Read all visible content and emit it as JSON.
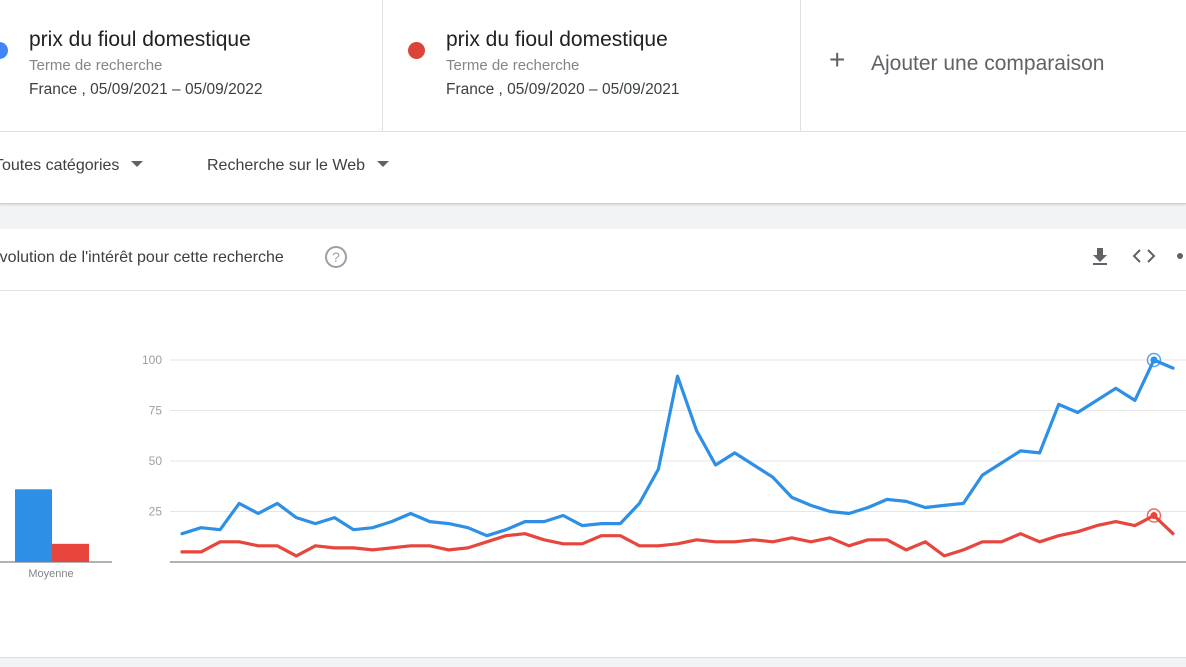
{
  "terms": [
    {
      "name": "prix du fioul domestique",
      "type": "Terme de recherche",
      "range": "France , 05/09/2021 – 05/09/2022",
      "color": "#4285f4"
    },
    {
      "name": "prix du fioul domestique",
      "type": "Terme de recherche",
      "range": "France , 05/09/2020 – 05/09/2021",
      "color": "#db4437"
    }
  ],
  "add_comparison": "Ajouter une comparaison",
  "filters": {
    "category": "Toutes catégories",
    "search_type": "Recherche sur le Web"
  },
  "card": {
    "title": "Évolution de l'intérêt pour cette recherche",
    "help": "?"
  },
  "toolbar": {
    "download": "download-icon",
    "embed": "embed-icon",
    "share": "share-icon"
  },
  "chart_data": {
    "type": "line",
    "ylim": [
      0,
      100
    ],
    "yticks": [
      25,
      50,
      75,
      100
    ],
    "average": {
      "label": "Moyenne",
      "values": [
        36,
        9
      ]
    },
    "series": [
      {
        "color": "#2d8fe6",
        "values": [
          14,
          17,
          16,
          29,
          24,
          29,
          22,
          19,
          22,
          16,
          17,
          20,
          24,
          20,
          19,
          17,
          13,
          16,
          20,
          20,
          23,
          18,
          19,
          19,
          29,
          46,
          92,
          65,
          48,
          54,
          48,
          42,
          32,
          28,
          25,
          24,
          27,
          31,
          30,
          27,
          28,
          29,
          43,
          49,
          55,
          54,
          78,
          74,
          80,
          86,
          80,
          100,
          96
        ]
      },
      {
        "color": "#e8453c",
        "values": [
          5,
          5,
          10,
          10,
          8,
          8,
          3,
          8,
          7,
          7,
          6,
          7,
          8,
          8,
          6,
          7,
          10,
          13,
          14,
          11,
          9,
          9,
          13,
          13,
          8,
          8,
          9,
          11,
          10,
          10,
          11,
          10,
          12,
          10,
          12,
          8,
          11,
          11,
          6,
          10,
          3,
          6,
          10,
          10,
          14,
          10,
          13,
          15,
          18,
          20,
          18,
          23,
          14
        ]
      }
    ]
  }
}
